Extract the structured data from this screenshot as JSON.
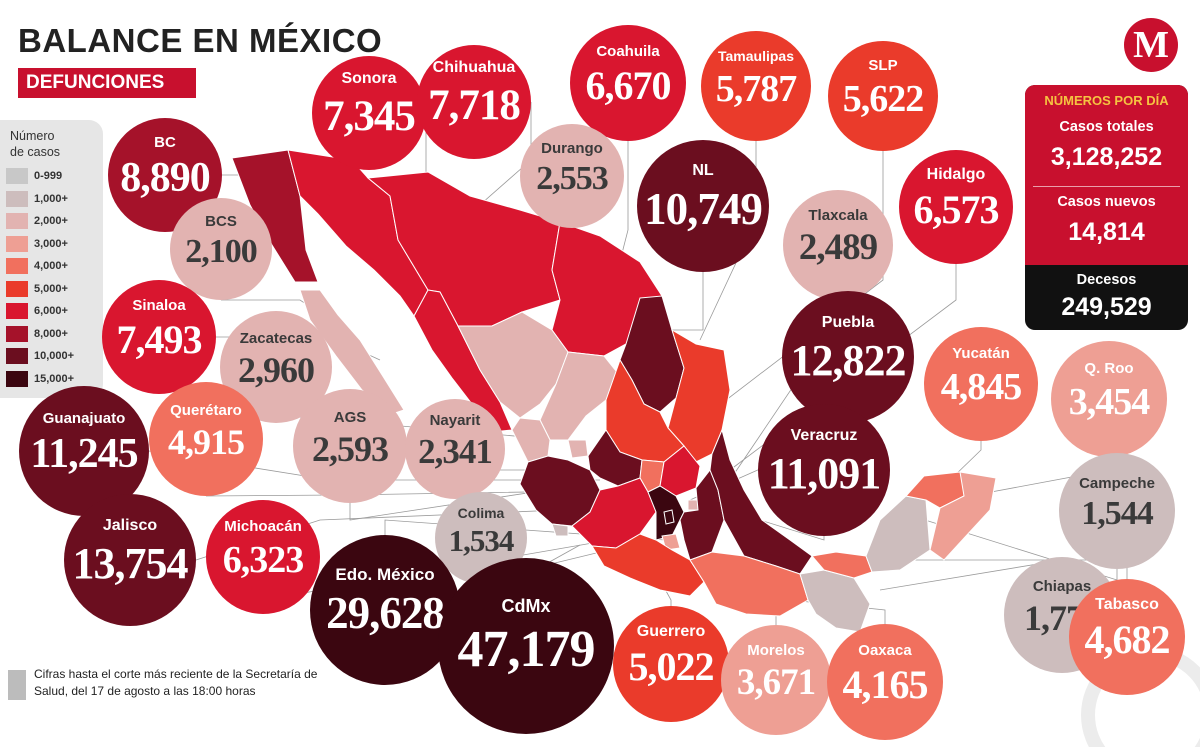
{
  "header": {
    "title_light": "BALANCE EN ",
    "title_bold": "MÉXICO",
    "subtitle": "DEFUNCIONES",
    "logo_letter": "M"
  },
  "legend": {
    "title_line1": "Número",
    "title_line2": "de casos",
    "items": [
      {
        "label": "0-999",
        "color": "#c8c8c8"
      },
      {
        "label": "1,000+",
        "color": "#cdbdbd"
      },
      {
        "label": "2,000+",
        "color": "#e2b3b1"
      },
      {
        "label": "3,000+",
        "color": "#ee9f94"
      },
      {
        "label": "4,000+",
        "color": "#f1705e"
      },
      {
        "label": "5,000+",
        "color": "#ea3b2b"
      },
      {
        "label": "6,000+",
        "color": "#d9162f"
      },
      {
        "label": "8,000+",
        "color": "#a5122a"
      },
      {
        "label": "10,000+",
        "color": "#6b0e1f"
      },
      {
        "label": "15,000+",
        "color": "#3b0610"
      }
    ]
  },
  "states": [
    {
      "name": "BC",
      "value": "8,890",
      "color": "#a5122a"
    },
    {
      "name": "Sonora",
      "value": "7,345",
      "color": "#d9162f"
    },
    {
      "name": "Chihuahua",
      "value": "7,718",
      "color": "#d9162f"
    },
    {
      "name": "Coahuila",
      "value": "6,670",
      "color": "#d9162f"
    },
    {
      "name": "Tamaulipas",
      "value": "5,787",
      "color": "#ea3b2b"
    },
    {
      "name": "SLP",
      "value": "5,622",
      "color": "#ea3b2b"
    },
    {
      "name": "Durango",
      "value": "2,553",
      "color": "#e2b3b1"
    },
    {
      "name": "NL",
      "value": "10,749",
      "color": "#6b0e1f"
    },
    {
      "name": "Hidalgo",
      "value": "6,573",
      "color": "#d9162f"
    },
    {
      "name": "BCS",
      "value": "2,100",
      "color": "#e2b3b1"
    },
    {
      "name": "Tlaxcala",
      "value": "2,489",
      "color": "#e2b3b1"
    },
    {
      "name": "Sinaloa",
      "value": "7,493",
      "color": "#d9162f"
    },
    {
      "name": "Zacatecas",
      "value": "2,960",
      "color": "#e2b3b1"
    },
    {
      "name": "Puebla",
      "value": "12,822",
      "color": "#6b0e1f"
    },
    {
      "name": "Yucatán",
      "value": "4,845",
      "color": "#f1705e"
    },
    {
      "name": "Q. Roo",
      "value": "3,454",
      "color": "#ee9f94"
    },
    {
      "name": "Guanajuato",
      "value": "11,245",
      "color": "#6b0e1f"
    },
    {
      "name": "Querétaro",
      "value": "4,915",
      "color": "#f1705e"
    },
    {
      "name": "AGS",
      "value": "2,593",
      "color": "#e2b3b1"
    },
    {
      "name": "Nayarit",
      "value": "2,341",
      "color": "#e2b3b1"
    },
    {
      "name": "Veracruz",
      "value": "11,091",
      "color": "#6b0e1f"
    },
    {
      "name": "Campeche",
      "value": "1,544",
      "color": "#cdbdbd"
    },
    {
      "name": "Jalisco",
      "value": "13,754",
      "color": "#6b0e1f"
    },
    {
      "name": "Michoacán",
      "value": "6,323",
      "color": "#d9162f"
    },
    {
      "name": "Colima",
      "value": "1,534",
      "color": "#cdbdbd"
    },
    {
      "name": "Edo. México",
      "value": "29,628",
      "color": "#3b0610"
    },
    {
      "name": "CdMx",
      "value": "47,179",
      "color": "#3b0610"
    },
    {
      "name": "Chiapas",
      "value": "1,772",
      "color": "#cdbdbd"
    },
    {
      "name": "Tabasco",
      "value": "4,682",
      "color": "#f1705e"
    },
    {
      "name": "Guerrero",
      "value": "5,022",
      "color": "#ea3b2b"
    },
    {
      "name": "Morelos",
      "value": "3,671",
      "color": "#ee9f94"
    },
    {
      "name": "Oaxaca",
      "value": "4,165",
      "color": "#f1705e"
    }
  ],
  "daily": {
    "heading": "NÚMEROS POR DÍA",
    "total_cases_label": "Casos totales",
    "total_cases_value": "3,128,252",
    "new_cases_label": "Casos nuevos",
    "new_cases_value": "14,814",
    "deaths_label": "Decesos",
    "deaths_value": "249,529"
  },
  "footnote": "Cifras hasta el corte más reciente de la Secretaría de Salud, del 17 de agosto a las 18:00 horas"
}
